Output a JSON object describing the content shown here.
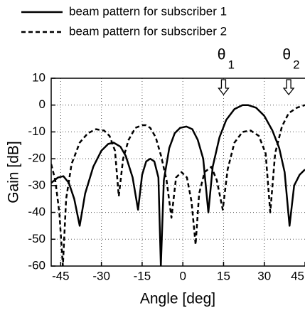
{
  "chart_data": {
    "type": "line",
    "xlabel": "Angle [deg]",
    "ylabel": "Gain [dB]",
    "xlim": [
      -48.5,
      45
    ],
    "ylim": [
      -60,
      10
    ],
    "xticks": [
      -45,
      -30,
      -15,
      0,
      15,
      30,
      45
    ],
    "yticks": [
      -60,
      -50,
      -40,
      -30,
      -20,
      -10,
      0,
      10
    ],
    "grid": true,
    "legend": "top",
    "series": [
      {
        "name": "beam pattern for subscriber 1",
        "color": "#000000",
        "dash": "solid",
        "x": [
          -48.5,
          -46,
          -44,
          -42,
          -40,
          -38,
          -36,
          -33,
          -30,
          -27.5,
          -25.5,
          -23,
          -21,
          -18.5,
          -16.5,
          -15,
          -13.5,
          -12,
          -10.5,
          -9,
          -8.1,
          -7,
          -5,
          -3,
          -1,
          1.3,
          3.5,
          5.5,
          7.5,
          9.4,
          11,
          13.5,
          16,
          19,
          22,
          24,
          27,
          30,
          33,
          35.5,
          37.5,
          39.3,
          41,
          43,
          45
        ],
        "values": [
          -29,
          -27,
          -26.5,
          -29,
          -35,
          -45,
          -33,
          -23,
          -17,
          -14.5,
          -14,
          -15.5,
          -19,
          -27,
          -39,
          -26,
          -21,
          -20,
          -21,
          -27,
          -60,
          -28,
          -16,
          -10.5,
          -8.5,
          -8,
          -9,
          -13,
          -20,
          -40,
          -23,
          -12,
          -5.5,
          -1.5,
          0,
          0,
          -1,
          -4,
          -9.5,
          -16,
          -25,
          -45,
          -30,
          -26,
          -24
        ]
      },
      {
        "name": "beam pattern for subscriber 2",
        "color": "#000000",
        "dash": "dashed",
        "x": [
          -48.5,
          -47,
          -45.5,
          -44.2,
          -43,
          -41,
          -38,
          -35,
          -32,
          -29,
          -27,
          -25,
          -23.6,
          -22,
          -20,
          -17.5,
          -15,
          -13.6,
          -12,
          -10,
          -8,
          -6,
          -4.2,
          -2.5,
          -0.5,
          1.5,
          3.2,
          4.7,
          6,
          8,
          10.5,
          12.5,
          14.7,
          16.5,
          19,
          22,
          25,
          28,
          30.5,
          32.2,
          34,
          36.5,
          39,
          42,
          45
        ],
        "values": [
          -22,
          -28,
          -40,
          -60,
          -35,
          -22,
          -14,
          -10.5,
          -9,
          -9.5,
          -11.5,
          -17,
          -34,
          -20,
          -13,
          -8.5,
          -7.5,
          -7.5,
          -8.5,
          -12,
          -19,
          -28,
          -42,
          -27,
          -25,
          -27,
          -36,
          -52,
          -33,
          -25,
          -23,
          -28,
          -39,
          -24,
          -14,
          -10,
          -9.5,
          -11.5,
          -18,
          -40,
          -18,
          -8,
          -3,
          -1,
          0
        ]
      }
    ],
    "annotations": [
      {
        "text": "θ",
        "subscript": "1",
        "x": 15
      },
      {
        "text": "θ",
        "subscript": "2",
        "x": 39
      }
    ]
  }
}
